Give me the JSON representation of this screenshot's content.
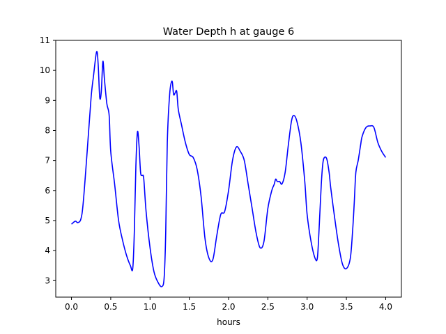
{
  "chart_data": {
    "type": "line",
    "title": "Water Depth h at gauge 6",
    "xlabel": "hours",
    "ylabel": "",
    "xlim": [
      -0.2,
      4.2
    ],
    "ylim": [
      2.45,
      11.0
    ],
    "xticks": [
      0.0,
      0.5,
      1.0,
      1.5,
      2.0,
      2.5,
      3.0,
      3.5,
      4.0
    ],
    "xtick_labels": [
      "0.0",
      "0.5",
      "1.0",
      "1.5",
      "2.0",
      "2.5",
      "3.0",
      "3.5",
      "4.0"
    ],
    "yticks": [
      3,
      4,
      5,
      6,
      7,
      8,
      9,
      10,
      11
    ],
    "ytick_labels": [
      "3",
      "4",
      "5",
      "6",
      "7",
      "8",
      "9",
      "10",
      "11"
    ],
    "grid": false,
    "legend": "none",
    "series": [
      {
        "color": "#0000ff",
        "x": [
          0.0,
          0.05,
          0.08,
          0.12,
          0.15,
          0.2,
          0.25,
          0.28,
          0.32,
          0.34,
          0.36,
          0.38,
          0.4,
          0.42,
          0.45,
          0.48,
          0.5,
          0.55,
          0.6,
          0.65,
          0.7,
          0.75,
          0.78,
          0.8,
          0.82,
          0.84,
          0.86,
          0.88,
          0.9,
          0.92,
          0.95,
          1.0,
          1.05,
          1.1,
          1.15,
          1.18,
          1.2,
          1.22,
          1.25,
          1.28,
          1.3,
          1.32,
          1.34,
          1.36,
          1.4,
          1.45,
          1.5,
          1.55,
          1.6,
          1.65,
          1.7,
          1.75,
          1.8,
          1.85,
          1.9,
          1.95,
          2.0,
          2.05,
          2.1,
          2.15,
          2.2,
          2.25,
          2.3,
          2.35,
          2.4,
          2.45,
          2.5,
          2.55,
          2.58,
          2.6,
          2.62,
          2.65,
          2.68,
          2.72,
          2.76,
          2.8,
          2.83,
          2.87,
          2.92,
          2.97,
          3.0,
          3.05,
          3.1,
          3.13,
          3.15,
          3.18,
          3.2,
          3.22,
          3.25,
          3.28,
          3.3,
          3.35,
          3.4,
          3.45,
          3.5,
          3.55,
          3.58,
          3.6,
          3.62,
          3.65,
          3.68,
          3.7,
          3.75,
          3.8,
          3.85,
          3.9,
          3.95,
          4.0
        ],
        "y": [
          4.88,
          4.98,
          4.93,
          5.05,
          5.6,
          7.3,
          9.1,
          9.8,
          10.62,
          10.2,
          9.1,
          9.3,
          10.3,
          9.7,
          8.9,
          8.5,
          7.3,
          6.2,
          5.0,
          4.35,
          3.85,
          3.5,
          3.4,
          4.6,
          6.8,
          7.95,
          7.5,
          6.6,
          6.5,
          6.4,
          5.3,
          4.1,
          3.3,
          2.95,
          2.8,
          3.1,
          4.6,
          7.6,
          9.2,
          9.65,
          9.2,
          9.25,
          9.3,
          8.7,
          8.2,
          7.6,
          7.2,
          7.1,
          6.7,
          5.8,
          4.4,
          3.75,
          3.7,
          4.5,
          5.2,
          5.3,
          6.0,
          7.0,
          7.45,
          7.3,
          7.0,
          6.2,
          5.4,
          4.6,
          4.1,
          4.3,
          5.4,
          6.0,
          6.2,
          6.38,
          6.3,
          6.3,
          6.22,
          6.6,
          7.5,
          8.3,
          8.5,
          8.3,
          7.6,
          6.3,
          5.2,
          4.3,
          3.75,
          3.75,
          4.6,
          6.2,
          6.9,
          7.1,
          7.05,
          6.6,
          6.1,
          5.1,
          4.2,
          3.55,
          3.4,
          3.75,
          4.7,
          5.6,
          6.6,
          7.0,
          7.5,
          7.8,
          8.1,
          8.15,
          8.1,
          7.6,
          7.3,
          7.1
        ]
      }
    ]
  }
}
